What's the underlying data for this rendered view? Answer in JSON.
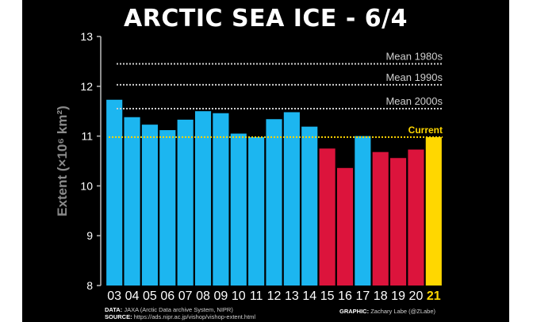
{
  "title": "ARCTIC SEA ICE - 6/4",
  "chart_data": {
    "type": "bar",
    "categories": [
      "03",
      "04",
      "05",
      "06",
      "07",
      "08",
      "09",
      "10",
      "11",
      "12",
      "13",
      "14",
      "15",
      "16",
      "17",
      "18",
      "19",
      "20",
      "21"
    ],
    "values": [
      11.73,
      11.38,
      11.23,
      11.12,
      11.33,
      11.5,
      11.46,
      11.05,
      10.98,
      11.34,
      11.48,
      11.19,
      10.75,
      10.36,
      11.0,
      10.68,
      10.56,
      10.73,
      10.98
    ],
    "colors": [
      "#1cb6f0",
      "#1cb6f0",
      "#1cb6f0",
      "#1cb6f0",
      "#1cb6f0",
      "#1cb6f0",
      "#1cb6f0",
      "#1cb6f0",
      "#1cb6f0",
      "#1cb6f0",
      "#1cb6f0",
      "#1cb6f0",
      "#dc143c",
      "#dc143c",
      "#1cb6f0",
      "#dc143c",
      "#dc143c",
      "#dc143c",
      "#ffd700"
    ],
    "ylabel": "Extent (×10⁶ km²)",
    "ylim": [
      8,
      13
    ],
    "yticks": [
      8,
      9,
      10,
      11,
      12,
      13
    ],
    "reference_lines": [
      {
        "label": "Mean 1980s",
        "value": 12.45,
        "color": "#cfcfcf"
      },
      {
        "label": "Mean 1990s",
        "value": 12.03,
        "color": "#cfcfcf"
      },
      {
        "label": "Mean 2000s",
        "value": 11.55,
        "color": "#cfcfcf"
      },
      {
        "label": "Current",
        "value": 10.98,
        "color": "#ffd700"
      }
    ],
    "grid": false
  },
  "footer": {
    "data_label": "DATA:",
    "data_text": "JAXA (Arctic Data archive System, NIPR)",
    "source_label": "SOURCE:",
    "source_text": "https://ads.nipr.ac.jp/vishop/vishop-extent.html",
    "graphic_label": "GRAPHIC:",
    "graphic_text": "Zachary Labe (@ZLabe)"
  }
}
